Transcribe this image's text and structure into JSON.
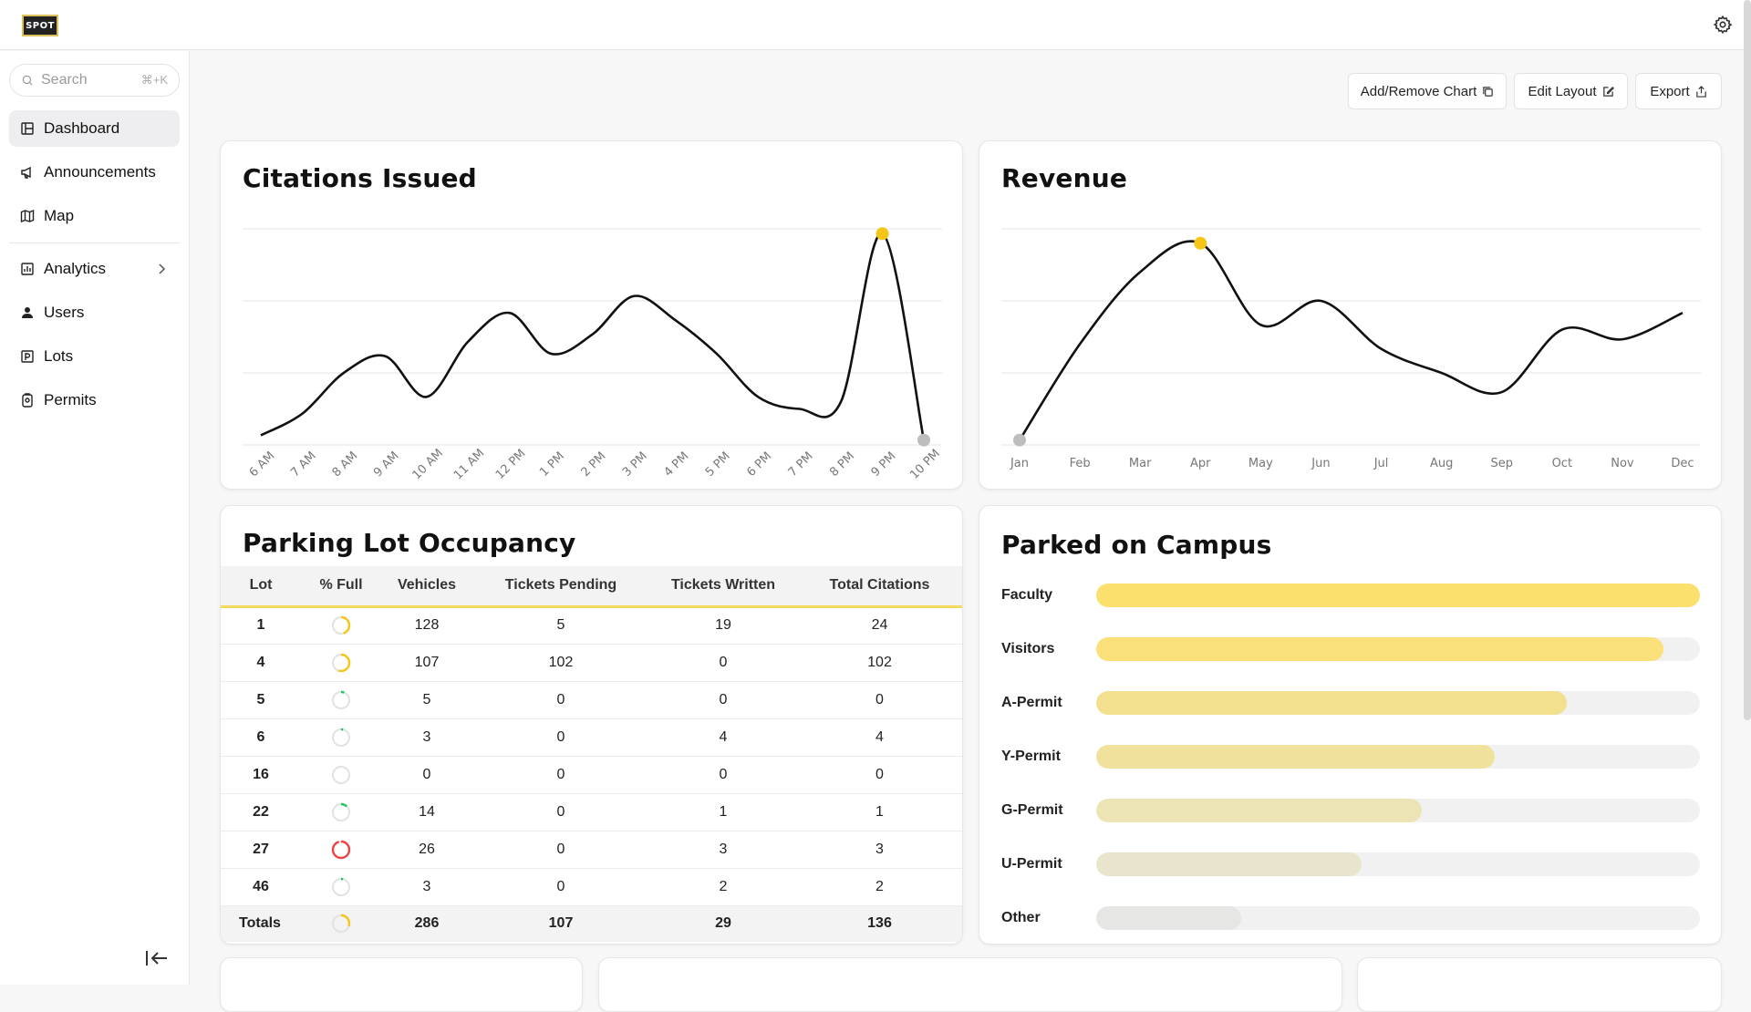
{
  "app": {
    "logo_text": "SPOT"
  },
  "sidebar": {
    "search_placeholder": "Search",
    "search_shortcut": "⌘+K",
    "items": [
      {
        "label": "Dashboard",
        "icon": "dashboard-icon",
        "active": true
      },
      {
        "label": "Announcements",
        "icon": "megaphone-icon"
      },
      {
        "label": "Map",
        "icon": "map-icon"
      },
      {
        "label": "Analytics",
        "icon": "bar-chart-icon",
        "has_submenu": true
      },
      {
        "label": "Users",
        "icon": "user-icon"
      },
      {
        "label": "Lots",
        "icon": "parking-icon"
      },
      {
        "label": "Permits",
        "icon": "badge-icon"
      }
    ]
  },
  "toolbar": {
    "add_remove_label": "Add/Remove Chart",
    "edit_layout_label": "Edit Layout",
    "export_label": "Export"
  },
  "citations": {
    "title": "Citations Issued",
    "chart_data": {
      "type": "line",
      "x": [
        "6 AM",
        "7 AM",
        "8 AM",
        "9 AM",
        "10 AM",
        "11 AM",
        "12 PM",
        "1 PM",
        "2 PM",
        "3 PM",
        "4 PM",
        "5 PM",
        "6 PM",
        "7 PM",
        "8 PM",
        "9 PM",
        "10 PM"
      ],
      "values": [
        4,
        13,
        30,
        37,
        20,
        43,
        55,
        38,
        46,
        62,
        52,
        38,
        20,
        15,
        18,
        88,
        2
      ],
      "ylim": [
        0,
        90
      ],
      "highlight_max_color": "#f5c518",
      "highlight_last_color": "#bdbdbd"
    }
  },
  "revenue": {
    "title": "Revenue",
    "chart_data": {
      "type": "line",
      "x": [
        "Jan",
        "Feb",
        "Mar",
        "Apr",
        "May",
        "Jun",
        "Jul",
        "Aug",
        "Sep",
        "Oct",
        "Nov",
        "Dec"
      ],
      "values": [
        2,
        42,
        72,
        84,
        50,
        60,
        40,
        30,
        22,
        48,
        44,
        55
      ],
      "ylim": [
        0,
        90
      ],
      "highlight_max_color": "#f5c518",
      "highlight_first_color": "#bdbdbd"
    }
  },
  "occupancy": {
    "title": "Parking Lot Occupancy",
    "columns": [
      "Lot",
      "% Full",
      "Vehicles",
      "Tickets Pending",
      "Tickets Written",
      "Total Citations"
    ],
    "rows": [
      {
        "lot": "1",
        "full": 0.45,
        "full_color": "#f5c518",
        "vehicles": "128",
        "pending": "5",
        "written": "19",
        "total": "24"
      },
      {
        "lot": "4",
        "full": 0.55,
        "full_color": "#f5c518",
        "vehicles": "107",
        "pending": "102",
        "written": "0",
        "total": "102"
      },
      {
        "lot": "5",
        "full": 0.06,
        "full_color": "#22c55e",
        "vehicles": "5",
        "pending": "0",
        "written": "0",
        "total": "0"
      },
      {
        "lot": "6",
        "full": 0.04,
        "full_color": "#22c55e",
        "vehicles": "3",
        "pending": "0",
        "written": "4",
        "total": "4"
      },
      {
        "lot": "16",
        "full": 0.0,
        "full_color": "#22c55e",
        "vehicles": "0",
        "pending": "0",
        "written": "0",
        "total": "0"
      },
      {
        "lot": "22",
        "full": 0.12,
        "full_color": "#22c55e",
        "vehicles": "14",
        "pending": "0",
        "written": "1",
        "total": "1"
      },
      {
        "lot": "27",
        "full": 0.95,
        "full_color": "#ef4444",
        "vehicles": "26",
        "pending": "0",
        "written": "3",
        "total": "3"
      },
      {
        "lot": "46",
        "full": 0.04,
        "full_color": "#22c55e",
        "vehicles": "3",
        "pending": "0",
        "written": "2",
        "total": "2"
      }
    ],
    "totals": {
      "label": "Totals",
      "full": 0.3,
      "full_color": "#f5c518",
      "vehicles": "286",
      "pending": "107",
      "written": "29",
      "total": "136"
    }
  },
  "parked": {
    "title": "Parked on Campus",
    "bars": [
      {
        "label": "Faculty",
        "value": 1.0,
        "color": "#fbe06e"
      },
      {
        "label": "Visitors",
        "value": 0.94,
        "color": "#f9e07a"
      },
      {
        "label": "A-Permit",
        "value": 0.78,
        "color": "#f3e08e"
      },
      {
        "label": "Y-Permit",
        "value": 0.66,
        "color": "#f0e29c"
      },
      {
        "label": "G-Permit",
        "value": 0.54,
        "color": "#ede4b5"
      },
      {
        "label": "U-Permit",
        "value": 0.44,
        "color": "#e9e5cc"
      },
      {
        "label": "Other",
        "value": 0.24,
        "color": "#e6e6e4"
      }
    ]
  }
}
